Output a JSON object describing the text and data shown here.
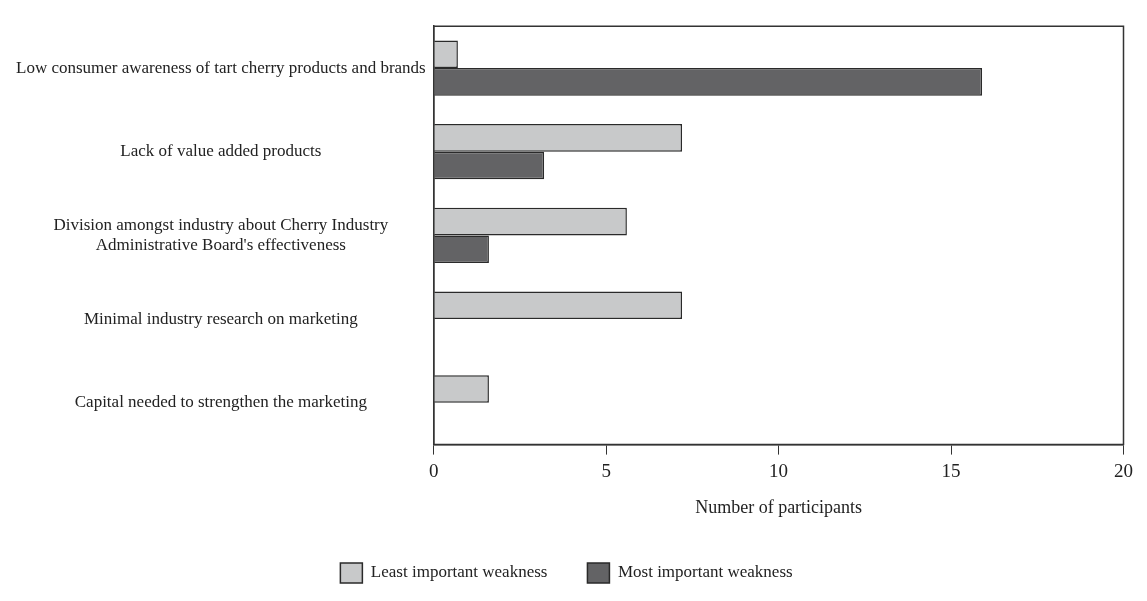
{
  "chart_data": {
    "type": "bar",
    "orientation": "horizontal",
    "xlabel": "Number of participants",
    "categories": [
      "Low consumer awareness of tart cherry products and brands",
      "Lack of value added products",
      "Division amongst industry about Cherry Industry Administrative Board's effectiveness",
      "Minimal industry research on marketing",
      "Capital needed to strengthen the marketing"
    ],
    "series": [
      {
        "name": "Least important weakness",
        "color": "#c8c9ca",
        "values": [
          0.7,
          7.2,
          5.6,
          7.2,
          1.6
        ]
      },
      {
        "name": "Most important weakness",
        "color": "#636365",
        "values": [
          15.9,
          3.2,
          1.6,
          0,
          0
        ]
      }
    ],
    "xlim": [
      0,
      20
    ],
    "xticks": [
      0,
      5,
      10,
      15,
      20
    ],
    "grid": false,
    "legend": "bottom"
  }
}
